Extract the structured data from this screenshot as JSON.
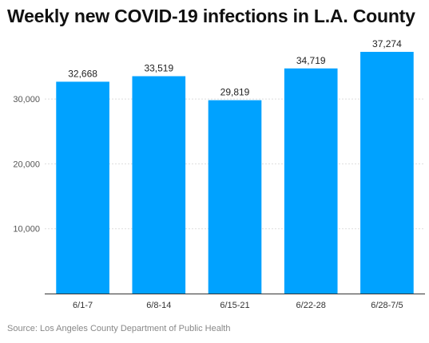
{
  "chart_data": {
    "type": "bar",
    "title": "Weekly new COVID-19 infections in L.A. County",
    "xlabel": "",
    "ylabel": "",
    "categories": [
      "6/1-7",
      "6/8-14",
      "6/15-21",
      "6/22-28",
      "6/28-7/5"
    ],
    "values": [
      32668,
      33519,
      29819,
      34719,
      37274
    ],
    "value_labels": [
      "32,668",
      "33,519",
      "29,819",
      "34,719",
      "37,274"
    ],
    "yticks": [
      10000,
      20000,
      30000
    ],
    "ytick_labels": [
      "10,000",
      "20,000",
      "30,000"
    ],
    "ylim": [
      0,
      37274
    ],
    "grid": true,
    "legend": "none",
    "bar_color": "#00a2ff",
    "source": "Source: Los Angeles County Department of Public Health"
  }
}
